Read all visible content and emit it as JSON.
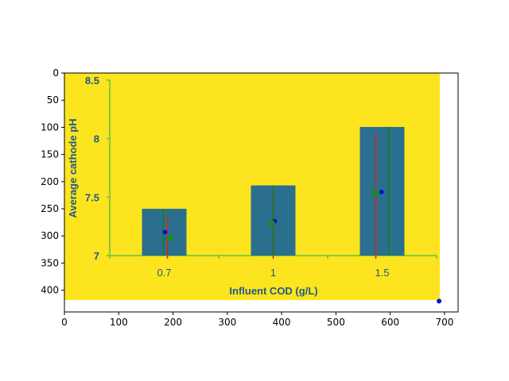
{
  "colors": {
    "background": "#fce41e",
    "bar": "#2b6f8e",
    "inner_axis": "#5fc24a",
    "inner_text": "#1f5a8a",
    "red_line": "#e0201a",
    "green_line": "#1a7a1a",
    "blue_point": "#0010d8",
    "green_point": "#1a8a1a"
  },
  "outer_axes": {
    "x_ticks": [
      "0",
      "100",
      "200",
      "300",
      "400",
      "500",
      "600",
      "700"
    ],
    "y_ticks": [
      "0",
      "50",
      "100",
      "150",
      "200",
      "250",
      "300",
      "350",
      "400"
    ]
  },
  "chart_data": {
    "type": "bar",
    "categories": [
      "0.7",
      "1",
      "1.5"
    ],
    "values": [
      7.4,
      7.6,
      8.1
    ],
    "xlabel": "Influent COD (g/L)",
    "ylabel": "Average cathode pH",
    "ylim": [
      7,
      8.5
    ],
    "y_ticks": [
      "7",
      "7.5",
      "8",
      "8.5"
    ],
    "points": [
      {
        "x": 185,
        "y": 293
      },
      {
        "x": 194,
        "y": 304
      },
      {
        "x": 387,
        "y": 273
      },
      {
        "x": 382,
        "y": 277
      },
      {
        "x": 584,
        "y": 219
      },
      {
        "x": 572,
        "y": 221
      },
      {
        "x": 690,
        "y": 420
      }
    ]
  }
}
